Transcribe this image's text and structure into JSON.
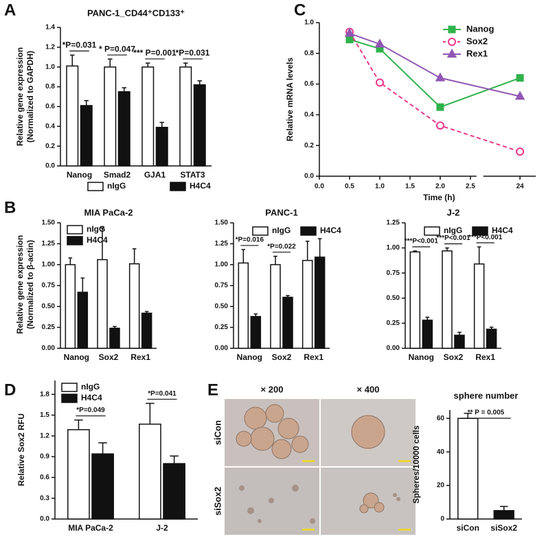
{
  "chart_data": [
    {
      "type": "bar",
      "panel": "A",
      "title": "PANC-1_CD44⁺CD133⁺",
      "ylabel": [
        "Relative gene expression",
        "(Normalized to GAPDH)"
      ],
      "categories": [
        "Nanog",
        "Smad2",
        "GJA1",
        "STAT3"
      ],
      "series": [
        {
          "name": "nIgG",
          "color": "#ffffff",
          "values": [
            1.01,
            1.0,
            1.0,
            1.0
          ],
          "errors": [
            0.11,
            0.08,
            0.04,
            0.04
          ]
        },
        {
          "name": "H4C4",
          "color": "#111111",
          "values": [
            0.61,
            0.75,
            0.39,
            0.82
          ],
          "errors": [
            0.05,
            0.04,
            0.05,
            0.04
          ]
        }
      ],
      "annotations": [
        "*P=0.031",
        "* P=0.047",
        "*** P=0.001",
        "*P=0.031"
      ],
      "ylim": [
        0,
        1.4
      ],
      "yticks": [
        {
          "value": 0,
          "label": "0.0"
        },
        0.2,
        0.4,
        0.6,
        0.8,
        {
          "value": 1,
          "label": "1.0"
        },
        1.2,
        1.4
      ],
      "legend": "bottom"
    },
    {
      "type": "line",
      "panel": "C",
      "ylabel": "Relative mRNA levels",
      "xlabel": "Time (h)",
      "x": [
        0.5,
        1,
        2,
        24
      ],
      "series": [
        {
          "name": "Nanog",
          "color": "#2fb24a",
          "marker": "square",
          "values": [
            0.89,
            0.83,
            0.45,
            0.64
          ]
        },
        {
          "name": "Sox2",
          "color": "#e8378c",
          "marker": "circle-open",
          "dash": true,
          "values": [
            0.94,
            0.61,
            0.33,
            0.16
          ]
        },
        {
          "name": "Rex1",
          "color": "#9157b4",
          "marker": "triangle",
          "values": [
            0.93,
            0.86,
            0.64,
            0.52
          ]
        }
      ],
      "xlim": [
        0,
        24.3
      ],
      "x_break": [
        2.6,
        23.3
      ],
      "xticks": [
        {
          "value": 0,
          "label": "0.0"
        },
        0.5,
        {
          "value": 1,
          "label": "1.0"
        },
        1.5,
        {
          "value": 2,
          "label": "2.0"
        },
        2.5,
        24
      ],
      "ylim": [
        0,
        1.0
      ],
      "yticks": [
        {
          "value": 0,
          "label": "0.0"
        },
        0.2,
        0.4,
        0.6,
        0.8,
        {
          "value": 1,
          "label": "1.0"
        }
      ],
      "legend": "top-right"
    },
    {
      "type": "bar",
      "panel": "B",
      "title": "MIA PaCa-2",
      "ylabel": [
        "Relative gene expression",
        "(Normalized to β-actin)"
      ],
      "categories": [
        "Nanog",
        "Sox2",
        "Rex1"
      ],
      "series": [
        {
          "name": "nIgG",
          "color": "#ffffff",
          "values": [
            1.0,
            1.06,
            1.01
          ],
          "errors": [
            0.08,
            0.38,
            0.18
          ]
        },
        {
          "name": "H4C4",
          "color": "#111111",
          "values": [
            0.67,
            0.24,
            0.42
          ],
          "errors": [
            0.17,
            0.02,
            0.02
          ]
        }
      ],
      "ylim": [
        0,
        1.5
      ],
      "yticks": [
        {
          "value": 0,
          "label": "0.00"
        },
        0.25,
        {
          "value": 0.5,
          "label": "0.50"
        },
        0.75,
        {
          "value": 1,
          "label": "1.00"
        },
        1.25,
        {
          "value": 1.5,
          "label": "1.50"
        }
      ],
      "legend": "top-left"
    },
    {
      "type": "bar",
      "title": "PANC-1",
      "categories": [
        "Nanog",
        "Sox2",
        "Rex1"
      ],
      "series": [
        {
          "name": "nIgG",
          "color": "#ffffff",
          "values": [
            1.02,
            1.0,
            1.05
          ],
          "errors": [
            0.16,
            0.1,
            0.23
          ]
        },
        {
          "name": "H4C4",
          "color": "#111111",
          "values": [
            0.38,
            0.61,
            1.09
          ],
          "errors": [
            0.03,
            0.02,
            0.22
          ]
        }
      ],
      "annotations": [
        "*P=0.016",
        "*P=0.022",
        null
      ],
      "ylim": [
        0,
        1.5
      ],
      "yticks": [
        {
          "value": 0,
          "label": "0.00"
        },
        0.25,
        {
          "value": 0.5,
          "label": "0.50"
        },
        0.75,
        {
          "value": 1,
          "label": "1.00"
        },
        1.25,
        {
          "value": 1.5,
          "label": "1.50"
        }
      ],
      "legend": "top"
    },
    {
      "type": "bar",
      "title": "J-2",
      "categories": [
        "Nanog",
        "Sox2",
        "Rex1"
      ],
      "series": [
        {
          "name": "nIgG",
          "color": "#ffffff",
          "values": [
            0.96,
            0.97,
            0.84
          ],
          "errors": [
            0.01,
            0.03,
            0.17
          ]
        },
        {
          "name": "H4C4",
          "color": "#111111",
          "values": [
            0.28,
            0.13,
            0.19
          ],
          "errors": [
            0.03,
            0.03,
            0.02
          ]
        }
      ],
      "annotations": [
        "***P<0.001",
        "***P<0.001",
        "***P<0.001"
      ],
      "ylim": [
        0,
        1.25
      ],
      "yticks": [
        {
          "value": 0,
          "label": "0.00"
        },
        0.25,
        {
          "value": 0.5,
          "label": "0.50"
        },
        0.75,
        {
          "value": 1,
          "label": "1.00"
        },
        1.25
      ],
      "legend": "top"
    },
    {
      "type": "bar",
      "panel": "D",
      "ylabel": "Relative Sox2 RFU",
      "categories": [
        "MIA PaCa-2",
        "J-2"
      ],
      "series": [
        {
          "name": "nIgG",
          "color": "#ffffff",
          "values": [
            1.29,
            1.37
          ],
          "errors": [
            0.14,
            0.3
          ]
        },
        {
          "name": "H4C4",
          "color": "#111111",
          "values": [
            0.94,
            0.8
          ],
          "errors": [
            0.16,
            0.11
          ]
        }
      ],
      "annotations": [
        "*P=0.049",
        "*P=0.041"
      ],
      "ylim": [
        0,
        2.0
      ],
      "yticks": [
        {
          "value": 0,
          "label": "0.0"
        },
        0.3,
        0.6,
        0.9,
        1.2,
        1.5,
        1.8
      ],
      "legend": "top-left"
    },
    {
      "type": "bar",
      "title": "sphere number",
      "ylabel": "Spheres/10000 cells",
      "categories": [
        "siCon",
        "siSox2"
      ],
      "series": [
        {
          "colors": [
            "#ffffff",
            "#111111"
          ],
          "values": [
            60,
            5
          ],
          "errors": [
            3,
            2.5
          ]
        }
      ],
      "annotation": "** P = 0.005",
      "ylim": [
        0,
        65
      ],
      "yticks": [
        0,
        20,
        40,
        60
      ]
    }
  ],
  "panel_E": {
    "panel": "E",
    "magnifications": [
      "× 200",
      "× 400"
    ],
    "rows": [
      "siCon",
      "siSox2"
    ]
  }
}
